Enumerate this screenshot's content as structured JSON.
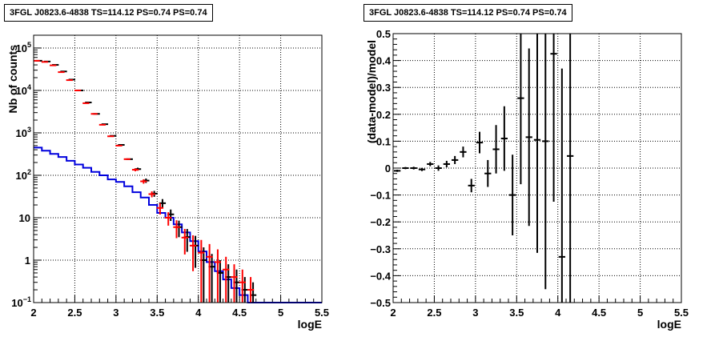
{
  "chart_data": [
    {
      "type": "histogram",
      "title": "3FGL J0823.6-4838 TS=114.12 PS=0.74 PS=0.74",
      "xlabel": "logE",
      "ylabel": "Nb of counts",
      "xlim": [
        2,
        5.5
      ],
      "ylim": [
        0.1,
        200000
      ],
      "yscale": "log",
      "grid": true,
      "x_ticks": [
        "2",
        "2.5",
        "3",
        "3.5",
        "4",
        "4.5",
        "5",
        "5.5"
      ],
      "y_ticks": [
        "10^-1",
        "1",
        "10",
        "10^2",
        "10^3",
        "10^4",
        "10^5"
      ],
      "bin_edges": [
        2.0,
        2.1,
        2.2,
        2.3,
        2.4,
        2.5,
        2.6,
        2.7,
        2.8,
        2.9,
        3.0,
        3.1,
        3.2,
        3.3,
        3.4,
        3.5,
        3.6,
        3.7,
        3.8,
        3.9,
        4.0,
        4.1,
        4.2,
        4.3,
        4.4,
        4.5,
        4.6,
        4.7,
        4.8,
        4.9,
        5.0,
        5.1,
        5.2,
        5.3,
        5.4,
        5.5
      ],
      "series": [
        {
          "kind": "data-points",
          "color": "#000000",
          "x": [
            2.05,
            2.15,
            2.25,
            2.35,
            2.45,
            2.55,
            2.65,
            2.75,
            2.85,
            2.95,
            3.05,
            3.15,
            3.25,
            3.35,
            3.45,
            3.55,
            3.65,
            3.75,
            3.85,
            3.95,
            4.05,
            4.15,
            4.25,
            4.35,
            4.45,
            4.55,
            4.65
          ],
          "y": [
            50000,
            48000,
            40000,
            28000,
            18000,
            10000,
            5200,
            2800,
            1600,
            850,
            520,
            240,
            140,
            75,
            37,
            22,
            12,
            6,
            3.5,
            2.2,
            1.0,
            0.7,
            0.5,
            0.4,
            0.3,
            0.2,
            0.15
          ],
          "yerr_rel": [
            0,
            0,
            0,
            0,
            0,
            0,
            0,
            0,
            0,
            0,
            0,
            0,
            0.08,
            0.12,
            0.16,
            0.25,
            0.3,
            0.42,
            0.55,
            0.7,
            1,
            1,
            1,
            1,
            1,
            1,
            1
          ]
        },
        {
          "kind": "data-points",
          "color": "#ff0000",
          "x": [
            2.05,
            2.15,
            2.25,
            2.35,
            2.45,
            2.55,
            2.65,
            2.75,
            2.85,
            2.95,
            3.05,
            3.15,
            3.25,
            3.35,
            3.45,
            3.55,
            3.65,
            3.75,
            3.85,
            3.95,
            4.05,
            4.15,
            4.25,
            4.35,
            4.45,
            4.55,
            4.65
          ],
          "y": [
            50000,
            47000,
            39000,
            27000,
            17500,
            10000,
            5000,
            2800,
            1550,
            830,
            500,
            240,
            135,
            72,
            36,
            17,
            10,
            6,
            3.4,
            2.2,
            1.5,
            1.2,
            0.9,
            0.6,
            0.4,
            0.3,
            0.2
          ],
          "yerr_rel": [
            0,
            0,
            0,
            0,
            0,
            0,
            0,
            0,
            0,
            0,
            0,
            0,
            0.08,
            0.12,
            0.16,
            0.3,
            0.35,
            0.45,
            0.6,
            0.75,
            1,
            1,
            1,
            1,
            1,
            1,
            1
          ]
        },
        {
          "kind": "model-step",
          "color": "#0000dd",
          "values": [
            450,
            380,
            320,
            270,
            220,
            180,
            150,
            120,
            100,
            80,
            70,
            55,
            40,
            30,
            20,
            13,
            10,
            7,
            4.5,
            2.8,
            1.6,
            0.9,
            0.55,
            0.35,
            0.22,
            0.15,
            0.1,
            0.1,
            0.1,
            0.1,
            0.1,
            0.1,
            0.1,
            0.1,
            0.1
          ]
        }
      ]
    },
    {
      "type": "scatter",
      "title": "3FGL J0823.6-4838 TS=114.12 PS=0.74 PS=0.74",
      "xlabel": "logE",
      "ylabel": "(data-model)/model",
      "xlim": [
        2,
        5.5
      ],
      "ylim": [
        -0.5,
        0.5
      ],
      "grid": true,
      "x_ticks": [
        "2",
        "2.5",
        "3",
        "3.5",
        "4",
        "4.5",
        "5",
        "5.5"
      ],
      "y_ticks": [
        "−0.5",
        "−0.4",
        "−0.3",
        "−0.2",
        "−0.1",
        "0",
        "0.1",
        "0.2",
        "0.3",
        "0.4",
        "0.5"
      ],
      "series": [
        {
          "color": "#000000",
          "x": [
            2.05,
            2.15,
            2.25,
            2.35,
            2.45,
            2.55,
            2.65,
            2.75,
            2.85,
            2.95,
            3.05,
            3.15,
            3.25,
            3.35,
            3.45,
            3.55,
            3.65,
            3.75,
            3.85,
            3.95,
            4.05,
            4.15
          ],
          "y": [
            -0.01,
            0.0,
            0.0,
            -0.005,
            0.015,
            0.0,
            0.015,
            0.03,
            0.06,
            -0.065,
            0.095,
            -0.02,
            0.07,
            0.11,
            -0.1,
            0.26,
            0.115,
            0.105,
            0.1,
            0.425,
            -0.33,
            0.045
          ],
          "yerr": [
            0.004,
            0.004,
            0.005,
            0.006,
            0.008,
            0.01,
            0.012,
            0.015,
            0.02,
            0.025,
            0.04,
            0.05,
            0.09,
            0.12,
            0.15,
            0.32,
            0.33,
            0.42,
            0.55,
            0.55,
            0.7,
            0.7
          ]
        }
      ]
    }
  ]
}
